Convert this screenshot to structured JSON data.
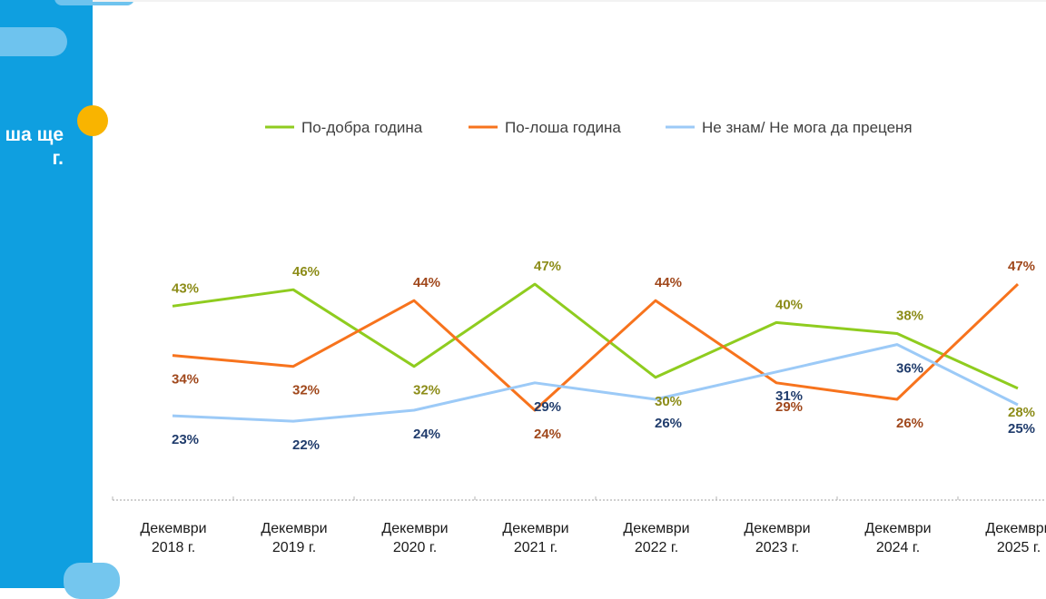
{
  "sidebar": {
    "text_lines": [
      "ша ще",
      "г."
    ]
  },
  "chart_data": {
    "type": "line",
    "categories": [
      [
        "Декември",
        "2018 г."
      ],
      [
        "Декември",
        "2019 г."
      ],
      [
        "Декември",
        "2020 г."
      ],
      [
        "Декември",
        "2021 г."
      ],
      [
        "Декември",
        "2022 г."
      ],
      [
        "Декември",
        "2023 г."
      ],
      [
        "Декември",
        "2024 г."
      ],
      [
        "Декември",
        "2025 г."
      ]
    ],
    "series": [
      {
        "name": "По-добра година",
        "color": "#8fcc1f",
        "label_color": "#8c8c18",
        "values": [
          43,
          46,
          32,
          47,
          30,
          40,
          38,
          28
        ],
        "labels": [
          "43%",
          "46%",
          "32%",
          "47%",
          "30%",
          "40%",
          "38%",
          "28%"
        ]
      },
      {
        "name": "По-лоша година",
        "color": "#f7731d",
        "label_color": "#a0481c",
        "values": [
          34,
          32,
          44,
          24,
          44,
          29,
          26,
          47
        ],
        "labels": [
          "34%",
          "32%",
          "44%",
          "24%",
          "44%",
          "29%",
          "26%",
          "47%"
        ]
      },
      {
        "name": "Не знам/ Не мога да преценя",
        "color": "#9ccaf7",
        "label_color": "#203c6c",
        "values": [
          23,
          22,
          24,
          29,
          26,
          31,
          36,
          25
        ],
        "labels": [
          "23%",
          "22%",
          "24%",
          "29%",
          "26%",
          "31%",
          "36%",
          "25%"
        ]
      }
    ],
    "legend_position": "top",
    "grid": false
  }
}
